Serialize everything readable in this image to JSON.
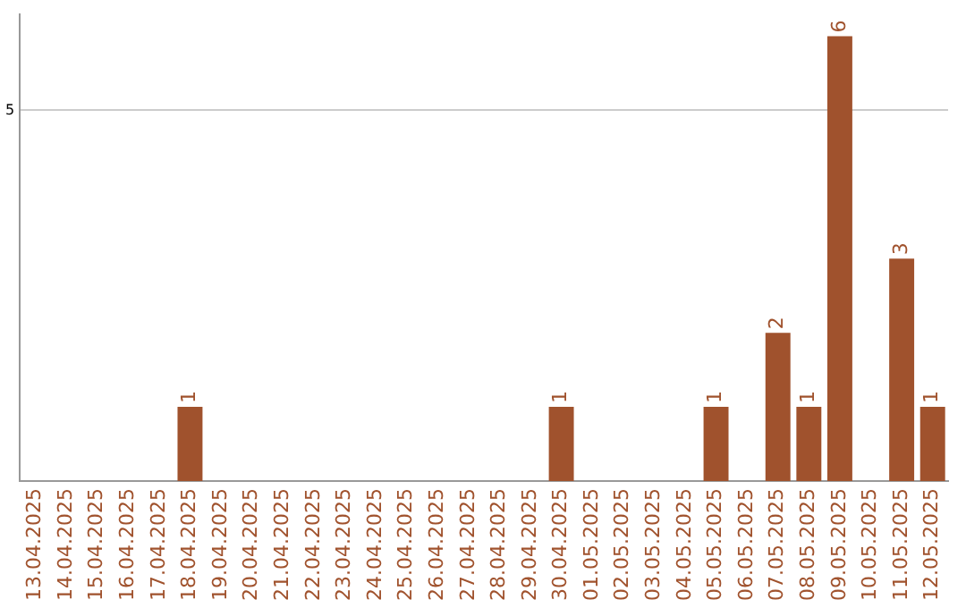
{
  "chart_data": {
    "type": "bar",
    "categories": [
      "13.04.2025",
      "14.04.2025",
      "15.04.2025",
      "16.04.2025",
      "17.04.2025",
      "18.04.2025",
      "19.04.2025",
      "20.04.2025",
      "21.04.2025",
      "22.04.2025",
      "23.04.2025",
      "24.04.2025",
      "25.04.2025",
      "26.04.2025",
      "27.04.2025",
      "28.04.2025",
      "29.04.2025",
      "30.04.2025",
      "01.05.2025",
      "02.05.2025",
      "03.05.2025",
      "04.05.2025",
      "05.05.2025",
      "06.05.2025",
      "07.05.2025",
      "08.05.2025",
      "09.05.2025",
      "10.05.2025",
      "11.05.2025",
      "12.05.2025"
    ],
    "values": [
      null,
      null,
      null,
      null,
      null,
      1,
      null,
      null,
      null,
      null,
      null,
      null,
      null,
      null,
      null,
      null,
      null,
      1,
      null,
      null,
      null,
      null,
      1,
      null,
      2,
      1,
      6,
      null,
      3,
      1
    ],
    "color": "#a0522d",
    "ylim": [
      0,
      6.3
    ],
    "yticks": [
      5
    ],
    "grid": "y",
    "data_labels": true,
    "legend": false
  }
}
